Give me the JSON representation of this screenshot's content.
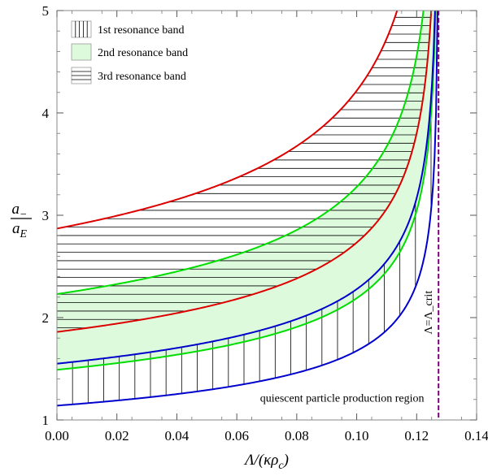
{
  "chart_data": {
    "type": "line",
    "xlabel": "Λ/(κρ_c)",
    "ylabel_num": "a_−",
    "ylabel_den": "a_E",
    "xlim": [
      0,
      0.14
    ],
    "ylim": [
      1,
      5
    ],
    "x_ticks": [
      "0.00",
      "0.02",
      "0.04",
      "0.06",
      "0.08",
      "0.10",
      "0.12",
      "0.14"
    ],
    "y_ticks": [
      "1",
      "2",
      "3",
      "4",
      "5"
    ],
    "grid": false,
    "legend_position": "top-left",
    "legend": [
      {
        "label": "1st resonance band",
        "pattern": "vertical-hatch"
      },
      {
        "label": "2nd resonance band",
        "pattern": "light-green-fill"
      },
      {
        "label": "3rd resonance band",
        "pattern": "horizontal-hatch"
      }
    ],
    "colors": {
      "first_band_boundary": "#0000cc",
      "second_band_boundary": "#00dd00",
      "third_band_boundary": "#dd0000",
      "second_band_fill": "#ddfadd",
      "critical_line": "#800080",
      "hatch": "#000000"
    },
    "critical_x": 0.1273,
    "critical_label": "Λ=Λ_crit",
    "annotation": "quiescent particle production region",
    "series": [
      {
        "band": 1,
        "edge": "lower",
        "color": "#0000cc",
        "y_at_zero": 1.14
      },
      {
        "band": 1,
        "edge": "upper",
        "color": "#0000cc",
        "y_at_zero": 1.55
      },
      {
        "band": 2,
        "edge": "lower",
        "color": "#00dd00",
        "y_at_zero": 1.49
      },
      {
        "band": 2,
        "edge": "upper",
        "color": "#00dd00",
        "y_at_zero": 2.23
      },
      {
        "band": 3,
        "edge": "lower",
        "color": "#dd0000",
        "y_at_zero": 1.86
      },
      {
        "band": 3,
        "edge": "upper",
        "color": "#dd0000",
        "y_at_zero": 2.87
      }
    ]
  }
}
